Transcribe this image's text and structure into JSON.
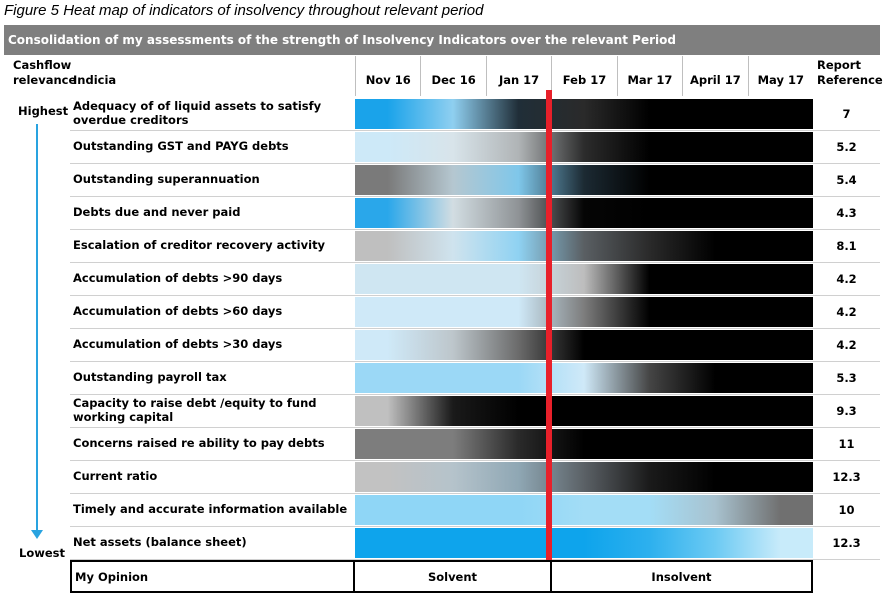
{
  "caption": "Figure 5 Heat map of indicators of insolvency throughout relevant period",
  "banner": "Consolidation of my assessments of the strength of Insolvency Indicators over the relevant Period",
  "headers": {
    "cashflow_line1": "Cashflow",
    "cashflow_line2": "relevance",
    "indicia": "Indicia",
    "report_line1": "Report",
    "report_line2": "Reference"
  },
  "side_labels": {
    "highest": "Highest",
    "lowest": "Lowest"
  },
  "colors": {
    "red_divider": "#e8202a",
    "arrow": "#29a3e0",
    "banner": "#7f7f7f"
  },
  "chart_data": {
    "type": "heatmap",
    "title": "Consolidation of my assessments of the strength of Insolvency Indicators over the relevant Period",
    "x": [
      "Nov 16",
      "Dec 16",
      "Jan 17",
      "Feb 17",
      "Mar 17",
      "April 17",
      "May 17"
    ],
    "divider_after": "Jan 17",
    "rows": [
      {
        "label": "Adequacy of of liquid assets to satisfy overdue creditors",
        "ref": "7",
        "fill": [
          "#1aa3ea",
          "#8fcff0",
          "#202e38",
          "#2a2a2a",
          "#000000",
          "#000000",
          "#000000"
        ]
      },
      {
        "label": "Outstanding GST and PAYG debts",
        "ref": "5.2",
        "fill": [
          "#cde9f8",
          "#d8e4ea",
          "#b0b4b6",
          "#2c2c2c",
          "#000000",
          "#000000",
          "#000000"
        ]
      },
      {
        "label": "Outstanding superannuation",
        "ref": "5.4",
        "fill": [
          "#7a7a7a",
          "#b5c7d0",
          "#7fc7ea",
          "#1c2a33",
          "#000000",
          "#000000",
          "#000000"
        ]
      },
      {
        "label": "Debts due and never paid",
        "ref": "4.3",
        "fill": [
          "#2aa7ea",
          "#d2dde2",
          "#8f9396",
          "#050505",
          "#000000",
          "#000000",
          "#000000"
        ]
      },
      {
        "label": "Escalation of creditor recovery activity",
        "ref": "8.1",
        "fill": [
          "#bfbfbf",
          "#cfe3ee",
          "#8fd2f2",
          "#5a5f63",
          "#2a2a2a",
          "#000000",
          "#000000"
        ]
      },
      {
        "label": "Accumulation of debts >90 days",
        "ref": "4.2",
        "fill": [
          "#cfe6f2",
          "#cfe6f2",
          "#cfe6f2",
          "#bdbdbd",
          "#000000",
          "#000000",
          "#000000"
        ]
      },
      {
        "label": "Accumulation of debts >60 days",
        "ref": "4.2",
        "fill": [
          "#cfe9f8",
          "#cfe9f8",
          "#cfe9f8",
          "#7d7d7d",
          "#000000",
          "#000000",
          "#000000"
        ]
      },
      {
        "label": "Accumulation of debts >30 days",
        "ref": "4.2",
        "fill": [
          "#cfe9f8",
          "#bdc6cb",
          "#6b6b6b",
          "#000000",
          "#000000",
          "#000000",
          "#000000"
        ]
      },
      {
        "label": "Outstanding payroll tax",
        "ref": "5.3",
        "fill": [
          "#9bd8f6",
          "#9bd8f6",
          "#9bd8f6",
          "#cfe9f8",
          "#454545",
          "#000000",
          "#000000"
        ]
      },
      {
        "label": "Capacity to raise debt /equity to fund working capital",
        "ref": "9.3",
        "fill": [
          "#c0c0c0",
          "#1a1a1a",
          "#000000",
          "#000000",
          "#000000",
          "#000000",
          "#000000"
        ]
      },
      {
        "label": "Concerns raised re ability to pay debts",
        "ref": "11",
        "fill": [
          "#7d7d7d",
          "#7d7d7d",
          "#2a2a2a",
          "#000000",
          "#000000",
          "#000000",
          "#000000"
        ]
      },
      {
        "label": "Current ratio",
        "ref": "12.3",
        "fill": [
          "#c2c2c2",
          "#b5c3cb",
          "#8fa7b4",
          "#5b6166",
          "#1a1a1a",
          "#000000",
          "#000000"
        ]
      },
      {
        "label": "Timely and accurate information available",
        "ref": "10",
        "fill": [
          "#8fd6f6",
          "#8fd6f6",
          "#8fd6f6",
          "#a3ddf6",
          "#a3ddf6",
          "#a8c2cf",
          "#707070"
        ]
      },
      {
        "label": "Net assets (balance sheet)",
        "ref": "12.3",
        "fill": [
          "#0ea4ec",
          "#0ea4ec",
          "#0ea4ec",
          "#0ea4ec",
          "#2db0ee",
          "#6ccaf3",
          "#c8ebfa"
        ]
      }
    ]
  },
  "opinion": {
    "label": "My Opinion",
    "solvent": "Solvent",
    "insolvent": "Insolvent"
  }
}
